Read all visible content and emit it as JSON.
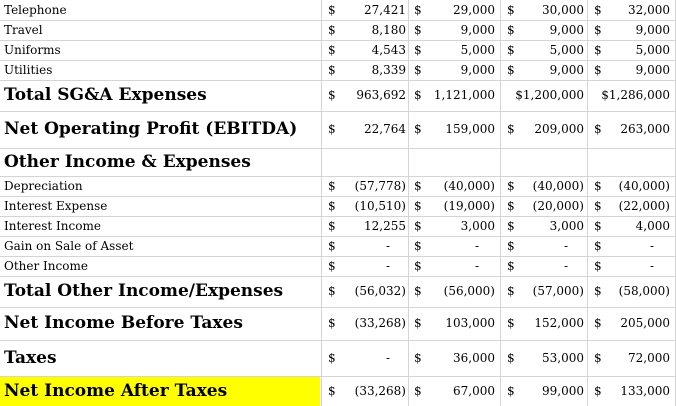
{
  "columns": [
    "",
    "",
    "",
    ""
  ],
  "rows": [
    {
      "label": "Telephone",
      "style": "small",
      "values": [
        [
          "$",
          "27,421"
        ],
        [
          "$",
          "29,000"
        ],
        [
          "$",
          "30,000"
        ],
        [
          "$",
          "32,000"
        ]
      ]
    },
    {
      "label": "Travel",
      "style": "small",
      "values": [
        [
          "$",
          "8,180"
        ],
        [
          "$",
          "9,000"
        ],
        [
          "$",
          "9,000"
        ],
        [
          "$",
          "9,000"
        ]
      ]
    },
    {
      "label": "Uniforms",
      "style": "small",
      "values": [
        [
          "$",
          "4,543"
        ],
        [
          "$",
          "5,000"
        ],
        [
          "$",
          "5,000"
        ],
        [
          "$",
          "5,000"
        ]
      ]
    },
    {
      "label": "Utilities",
      "style": "small",
      "values": [
        [
          "$",
          "8,339"
        ],
        [
          "$",
          "9,000"
        ],
        [
          "$",
          "9,000"
        ],
        [
          "$",
          "9,000"
        ]
      ]
    },
    {
      "label": "Total SG&A Expenses",
      "style": "big",
      "values": [
        [
          "$",
          "963,692"
        ],
        [
          "$",
          "1,121,000"
        ],
        [
          "",
          "$1,200,000"
        ],
        [
          "",
          "$1,286,000"
        ]
      ]
    },
    {
      "label": "Net Operating Profit (EBITDA)",
      "style": "big",
      "values": [
        [
          "$",
          "22,764"
        ],
        [
          "$",
          "159,000"
        ],
        [
          "$",
          "209,000"
        ],
        [
          "$",
          "263,000"
        ]
      ]
    },
    {
      "label": "Other Income & Expenses",
      "style": "big",
      "values": [
        [
          "",
          ""
        ],
        [
          "",
          ""
        ],
        [
          "",
          ""
        ],
        [
          "",
          ""
        ]
      ]
    },
    {
      "label": "Depreciation",
      "style": "small",
      "values": [
        [
          "$",
          "(57,778)"
        ],
        [
          "$",
          "(40,000)"
        ],
        [
          "$",
          "(40,000)"
        ],
        [
          "$",
          "(40,000)"
        ]
      ]
    },
    {
      "label": "Interest Expense",
      "style": "small",
      "values": [
        [
          "$",
          "(10,510)"
        ],
        [
          "$",
          "(19,000)"
        ],
        [
          "$",
          "(20,000)"
        ],
        [
          "$",
          "(22,000)"
        ]
      ]
    },
    {
      "label": "Interest Income",
      "style": "small",
      "values": [
        [
          "$",
          "12,255"
        ],
        [
          "$",
          "3,000"
        ],
        [
          "$",
          "3,000"
        ],
        [
          "$",
          "4,000"
        ]
      ]
    },
    {
      "label": "Gain on Sale of Asset",
      "style": "small",
      "values": [
        [
          "$",
          "-"
        ],
        [
          "$",
          "-"
        ],
        [
          "$",
          "-"
        ],
        [
          "$",
          "-"
        ]
      ]
    },
    {
      "label": "Other Income",
      "style": "small",
      "values": [
        [
          "$",
          "-"
        ],
        [
          "$",
          "-"
        ],
        [
          "$",
          "-"
        ],
        [
          "$",
          "-"
        ]
      ]
    },
    {
      "label": "Total Other Income/Expenses",
      "style": "big",
      "values": [
        [
          "$",
          "(56,032)"
        ],
        [
          "$",
          "(56,000)"
        ],
        [
          "$",
          "(57,000)"
        ],
        [
          "$",
          "(58,000)"
        ]
      ]
    },
    {
      "label": "Net Income Before Taxes",
      "style": "big",
      "values": [
        [
          "$",
          "(33,268)"
        ],
        [
          "$",
          "103,000"
        ],
        [
          "$",
          "152,000"
        ],
        [
          "$",
          "205,000"
        ]
      ]
    },
    {
      "label": "Taxes",
      "style": "big",
      "values": [
        [
          "$",
          "-"
        ],
        [
          "$",
          "36,000"
        ],
        [
          "$",
          "53,000"
        ],
        [
          "$",
          "72,000"
        ]
      ]
    },
    {
      "label": "Net Income After Taxes",
      "style": "big",
      "highlight": "#ffff00",
      "values": [
        [
          "$",
          "(33,268)"
        ],
        [
          "$",
          "67,000"
        ],
        [
          "$",
          "99,000"
        ],
        [
          "$",
          "133,000"
        ]
      ]
    }
  ]
}
